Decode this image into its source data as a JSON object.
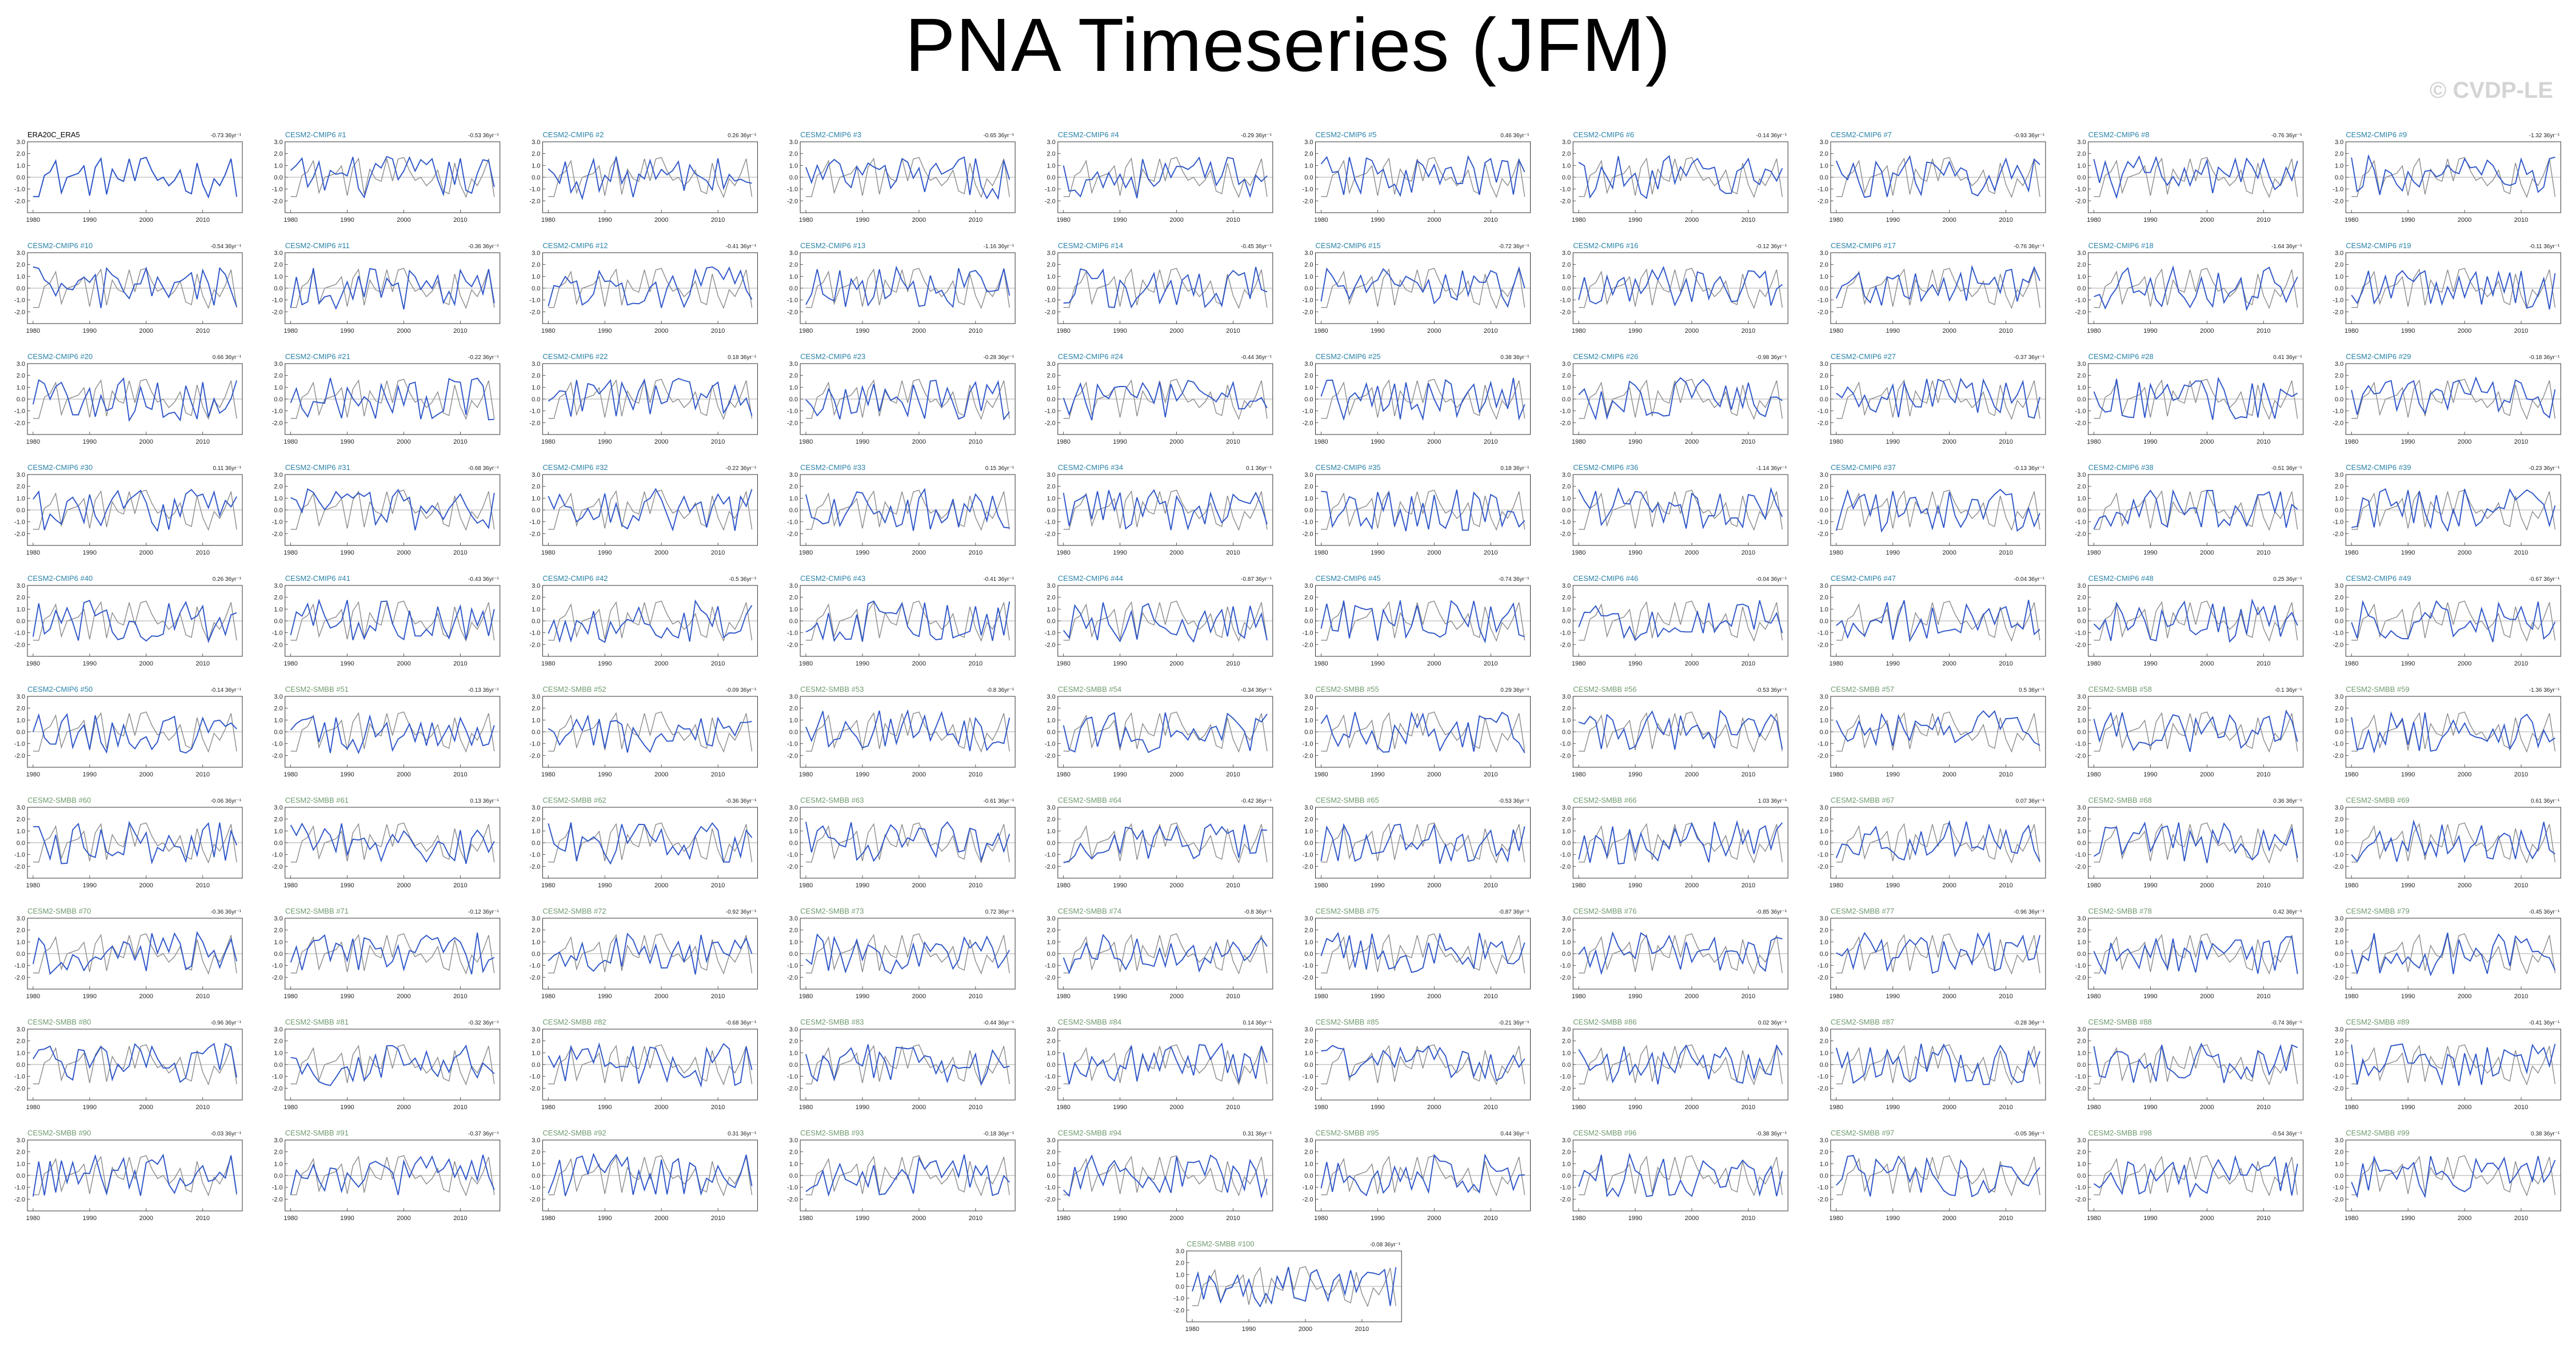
{
  "title": "PNA Timeseries (JFM)",
  "watermark": "© CVDP-LE",
  "colors": {
    "background": "#ffffff",
    "obs_line": "#2d55c8",
    "model_line": "#8a8a8a",
    "cmip6_title": "#2a82a8",
    "smbb_title": "#6f9a6f",
    "obs_title": "#000000",
    "axis": "#333333"
  },
  "chart_data": {
    "type": "line",
    "layout": "small multiples, 10 columns, 11 rows (last row: 1 panel centered)",
    "x_tick_labels": [
      "1980",
      "1990",
      "2000",
      "2010"
    ],
    "y_tick_labels": [
      "3.0",
      "2.0",
      "1.0",
      "0.0",
      "-1.0",
      "-2.0"
    ],
    "xlim": [
      1979,
      2017
    ],
    "ylim": [
      -3.0,
      3.0
    ],
    "series_legend": [],
    "panels": [
      {
        "label": "ERA20C_ERA5",
        "trend": "-0.73 36yr⁻¹"
      },
      {
        "label": "CESM2-CMIP6 #1",
        "trend": "-0.53 36yr⁻¹"
      },
      {
        "label": "CESM2-CMIP6 #2",
        "trend": "0.26 36yr⁻¹"
      },
      {
        "label": "CESM2-CMIP6 #3",
        "trend": "-0.65 36yr⁻¹"
      },
      {
        "label": "CESM2-CMIP6 #4",
        "trend": "-0.29 36yr⁻¹"
      },
      {
        "label": "CESM2-CMIP6 #5",
        "trend": "0.46 36yr⁻¹"
      },
      {
        "label": "CESM2-CMIP6 #6",
        "trend": "-0.14 36yr⁻¹"
      },
      {
        "label": "CESM2-CMIP6 #7",
        "trend": "-0.93 36yr⁻¹"
      },
      {
        "label": "CESM2-CMIP6 #8",
        "trend": "-0.76 36yr⁻¹"
      },
      {
        "label": "CESM2-CMIP6 #9",
        "trend": "-1.32 36yr⁻¹"
      },
      {
        "label": "CESM2-CMIP6 #10",
        "trend": "-0.54 36yr⁻¹"
      },
      {
        "label": "CESM2-CMIP6 #11",
        "trend": "-0.36 36yr⁻¹"
      },
      {
        "label": "CESM2-CMIP6 #12",
        "trend": "-0.41 36yr⁻¹"
      },
      {
        "label": "CESM2-CMIP6 #13",
        "trend": "-1.16 36yr⁻¹"
      },
      {
        "label": "CESM2-CMIP6 #14",
        "trend": "-0.45 36yr⁻¹"
      },
      {
        "label": "CESM2-CMIP6 #15",
        "trend": "-0.72 36yr⁻¹"
      },
      {
        "label": "CESM2-CMIP6 #16",
        "trend": "-0.12 36yr⁻¹"
      },
      {
        "label": "CESM2-CMIP6 #17",
        "trend": "-0.76 36yr⁻¹"
      },
      {
        "label": "CESM2-CMIP6 #18",
        "trend": "-1.64 36yr⁻¹"
      },
      {
        "label": "CESM2-CMIP6 #19",
        "trend": "-0.11 36yr⁻¹"
      },
      {
        "label": "CESM2-CMIP6 #20",
        "trend": "0.66 36yr⁻¹"
      },
      {
        "label": "CESM2-CMIP6 #21",
        "trend": "-0.22 36yr⁻¹"
      },
      {
        "label": "CESM2-CMIP6 #22",
        "trend": "0.18 36yr⁻¹"
      },
      {
        "label": "CESM2-CMIP6 #23",
        "trend": "-0.28 36yr⁻¹"
      },
      {
        "label": "CESM2-CMIP6 #24",
        "trend": "-0.44 36yr⁻¹"
      },
      {
        "label": "CESM2-CMIP6 #25",
        "trend": "0.38 36yr⁻¹"
      },
      {
        "label": "CESM2-CMIP6 #26",
        "trend": "-0.98 36yr⁻¹"
      },
      {
        "label": "CESM2-CMIP6 #27",
        "trend": "-0.37 36yr⁻¹"
      },
      {
        "label": "CESM2-CMIP6 #28",
        "trend": "0.41 36yr⁻¹"
      },
      {
        "label": "CESM2-CMIP6 #29",
        "trend": "-0.18 36yr⁻¹"
      },
      {
        "label": "CESM2-CMIP6 #30",
        "trend": "0.11 36yr⁻¹"
      },
      {
        "label": "CESM2-CMIP6 #31",
        "trend": "-0.68 36yr⁻¹"
      },
      {
        "label": "CESM2-CMIP6 #32",
        "trend": "-0.22 36yr⁻¹"
      },
      {
        "label": "CESM2-CMIP6 #33",
        "trend": "0.15 36yr⁻¹"
      },
      {
        "label": "CESM2-CMIP6 #34",
        "trend": "0.1 36yr⁻¹"
      },
      {
        "label": "CESM2-CMIP6 #35",
        "trend": "0.18 36yr⁻¹"
      },
      {
        "label": "CESM2-CMIP6 #36",
        "trend": "-1.14 36yr⁻¹"
      },
      {
        "label": "CESM2-CMIP6 #37",
        "trend": "-0.13 36yr⁻¹"
      },
      {
        "label": "CESM2-CMIP6 #38",
        "trend": "-0.51 36yr⁻¹"
      },
      {
        "label": "CESM2-CMIP6 #39",
        "trend": "-0.23 36yr⁻¹"
      },
      {
        "label": "CESM2-CMIP6 #40",
        "trend": "0.26 36yr⁻¹"
      },
      {
        "label": "CESM2-CMIP6 #41",
        "trend": "-0.43 36yr⁻¹"
      },
      {
        "label": "CESM2-CMIP6 #42",
        "trend": "-0.5 36yr⁻¹"
      },
      {
        "label": "CESM2-CMIP6 #43",
        "trend": "-0.41 36yr⁻¹"
      },
      {
        "label": "CESM2-CMIP6 #44",
        "trend": "-0.87 36yr⁻¹"
      },
      {
        "label": "CESM2-CMIP6 #45",
        "trend": "-0.74 36yr⁻¹"
      },
      {
        "label": "CESM2-CMIP6 #46",
        "trend": "-0.04 36yr⁻¹"
      },
      {
        "label": "CESM2-CMIP6 #47",
        "trend": "-0.04 36yr⁻¹"
      },
      {
        "label": "CESM2-CMIP6 #48",
        "trend": "0.25 36yr⁻¹"
      },
      {
        "label": "CESM2-CMIP6 #49",
        "trend": "-0.67 36yr⁻¹"
      },
      {
        "label": "CESM2-CMIP6 #50",
        "trend": "-0.14 36yr⁻¹"
      },
      {
        "label": "CESM2-SMBB #51",
        "trend": "-0.13 36yr⁻¹"
      },
      {
        "label": "CESM2-SMBB #52",
        "trend": "-0.09 36yr⁻¹"
      },
      {
        "label": "CESM2-SMBB #53",
        "trend": "-0.8 36yr⁻¹"
      },
      {
        "label": "CESM2-SMBB #54",
        "trend": "-0.34 36yr⁻¹"
      },
      {
        "label": "CESM2-SMBB #55",
        "trend": "0.29 36yr⁻¹"
      },
      {
        "label": "CESM2-SMBB #56",
        "trend": "-0.53 36yr⁻¹"
      },
      {
        "label": "CESM2-SMBB #57",
        "trend": "0.5 36yr⁻¹"
      },
      {
        "label": "CESM2-SMBB #58",
        "trend": "-0.1 36yr⁻¹"
      },
      {
        "label": "CESM2-SMBB #59",
        "trend": "-1.36 36yr⁻¹"
      },
      {
        "label": "CESM2-SMBB #60",
        "trend": "-0.06 36yr⁻¹"
      },
      {
        "label": "CESM2-SMBB #61",
        "trend": "0.13 36yr⁻¹"
      },
      {
        "label": "CESM2-SMBB #62",
        "trend": "-0.36 36yr⁻¹"
      },
      {
        "label": "CESM2-SMBB #63",
        "trend": "-0.61 36yr⁻¹"
      },
      {
        "label": "CESM2-SMBB #64",
        "trend": "-0.42 36yr⁻¹"
      },
      {
        "label": "CESM2-SMBB #65",
        "trend": "-0.53 36yr⁻¹"
      },
      {
        "label": "CESM2-SMBB #66",
        "trend": "1.03 36yr⁻¹"
      },
      {
        "label": "CESM2-SMBB #67",
        "trend": "0.07 36yr⁻¹"
      },
      {
        "label": "CESM2-SMBB #68",
        "trend": "0.36 36yr⁻¹"
      },
      {
        "label": "CESM2-SMBB #69",
        "trend": "0.61 36yr⁻¹"
      },
      {
        "label": "CESM2-SMBB #70",
        "trend": "-0.36 36yr⁻¹"
      },
      {
        "label": "CESM2-SMBB #71",
        "trend": "-0.12 36yr⁻¹"
      },
      {
        "label": "CESM2-SMBB #72",
        "trend": "-0.92 36yr⁻¹"
      },
      {
        "label": "CESM2-SMBB #73",
        "trend": "0.72 36yr⁻¹"
      },
      {
        "label": "CESM2-SMBB #74",
        "trend": "-0.8 36yr⁻¹"
      },
      {
        "label": "CESM2-SMBB #75",
        "trend": "-0.87 36yr⁻¹"
      },
      {
        "label": "CESM2-SMBB #76",
        "trend": "-0.85 36yr⁻¹"
      },
      {
        "label": "CESM2-SMBB #77",
        "trend": "-0.96 36yr⁻¹"
      },
      {
        "label": "CESM2-SMBB #78",
        "trend": "0.42 36yr⁻¹"
      },
      {
        "label": "CESM2-SMBB #79",
        "trend": "-0.45 36yr⁻¹"
      },
      {
        "label": "CESM2-SMBB #80",
        "trend": "-0.96 36yr⁻¹"
      },
      {
        "label": "CESM2-SMBB #81",
        "trend": "-0.32 36yr⁻¹"
      },
      {
        "label": "CESM2-SMBB #82",
        "trend": "-0.68 36yr⁻¹"
      },
      {
        "label": "CESM2-SMBB #83",
        "trend": "-0.44 36yr⁻¹"
      },
      {
        "label": "CESM2-SMBB #84",
        "trend": "0.14 36yr⁻¹"
      },
      {
        "label": "CESM2-SMBB #85",
        "trend": "-0.21 36yr⁻¹"
      },
      {
        "label": "CESM2-SMBB #86",
        "trend": "0.02 36yr⁻¹"
      },
      {
        "label": "CESM2-SMBB #87",
        "trend": "-0.28 36yr⁻¹"
      },
      {
        "label": "CESM2-SMBB #88",
        "trend": "-0.74 36yr⁻¹"
      },
      {
        "label": "CESM2-SMBB #89",
        "trend": "-0.41 36yr⁻¹"
      },
      {
        "label": "CESM2-SMBB #90",
        "trend": "-0.03 36yr⁻¹"
      },
      {
        "label": "CESM2-SMBB #91",
        "trend": "-0.37 36yr⁻¹"
      },
      {
        "label": "CESM2-SMBB #92",
        "trend": "0.31 36yr⁻¹"
      },
      {
        "label": "CESM2-SMBB #93",
        "trend": "-0.18 36yr⁻¹"
      },
      {
        "label": "CESM2-SMBB #94",
        "trend": "0.31 36yr⁻¹"
      },
      {
        "label": "CESM2-SMBB #95",
        "trend": "0.44 36yr⁻¹"
      },
      {
        "label": "CESM2-SMBB #96",
        "trend": "-0.38 36yr⁻¹"
      },
      {
        "label": "CESM2-SMBB #97",
        "trend": "-0.05 36yr⁻¹"
      },
      {
        "label": "CESM2-SMBB #98",
        "trend": "-0.54 36yr⁻¹"
      },
      {
        "label": "CESM2-SMBB #99",
        "trend": "0.38 36yr⁻¹"
      },
      {
        "label": "CESM2-SMBB #100",
        "trend": "-0.08 36yr⁻¹"
      }
    ]
  }
}
